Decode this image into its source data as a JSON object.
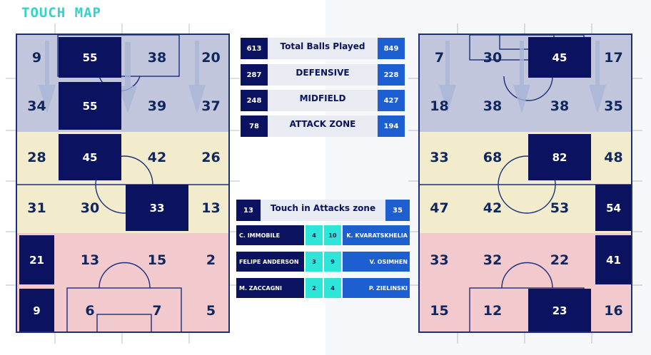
{
  "title": "TOUCH MAP",
  "colors": {
    "title": "#30d4cc",
    "attack_zone": "#c1c6dd",
    "midfield_zone": "#f2eccd",
    "defensive_zone": "#f2c9cd",
    "highlight": "#0b1360",
    "home_bar": "#0b1360",
    "away_bar": "#1d5fd1",
    "player_value": "#2ee6d8"
  },
  "chart_data": [
    {
      "type": "heatmap",
      "grid": [
        [
          9,
          55,
          38,
          20
        ],
        [
          34,
          55,
          39,
          37
        ],
        [
          28,
          45,
          42,
          26
        ],
        [
          31,
          30,
          33,
          13
        ],
        [
          21,
          13,
          15,
          2
        ],
        [
          9,
          6,
          7,
          5
        ]
      ],
      "highlighted": [
        [
          0,
          1
        ],
        [
          1,
          1
        ],
        [
          2,
          1
        ],
        [
          3,
          2
        ],
        [
          4,
          0
        ],
        [
          5,
          0
        ]
      ]
    },
    {
      "type": "heatmap",
      "grid": [
        [
          7,
          30,
          45,
          17
        ],
        [
          18,
          38,
          38,
          35
        ],
        [
          33,
          68,
          82,
          48
        ],
        [
          47,
          42,
          53,
          54
        ],
        [
          33,
          32,
          22,
          41
        ],
        [
          15,
          12,
          23,
          16
        ]
      ],
      "highlighted": [
        [
          0,
          2
        ],
        [
          2,
          2
        ],
        [
          3,
          3
        ],
        [
          4,
          3
        ],
        [
          5,
          2
        ]
      ]
    },
    {
      "type": "table",
      "rows": [
        {
          "label": "Total Balls Played",
          "home": "613",
          "away": "849"
        },
        {
          "label": "DEFENSIVE",
          "home": "287",
          "away": "228"
        },
        {
          "label": "MIDFIELD",
          "home": "248",
          "away": "427"
        },
        {
          "label": "ATTACK ZONE",
          "home": "78",
          "away": "194"
        }
      ]
    },
    {
      "type": "table",
      "header": {
        "label": "Touch in Attacks zone",
        "home": "13",
        "away": "35"
      },
      "players": [
        {
          "home_name": "C. IMMOBILE",
          "home_value": "4",
          "away_value": "10",
          "away_name": "K. KVARATSKHELIA"
        },
        {
          "home_name": "FELIPE ANDERSON",
          "home_value": "3",
          "away_value": "9",
          "away_name": "V. OSIMHEN"
        },
        {
          "home_name": "M. ZACCAGNI",
          "home_value": "2",
          "away_value": "4",
          "away_name": "P. ZIELINSKI"
        }
      ]
    }
  ]
}
